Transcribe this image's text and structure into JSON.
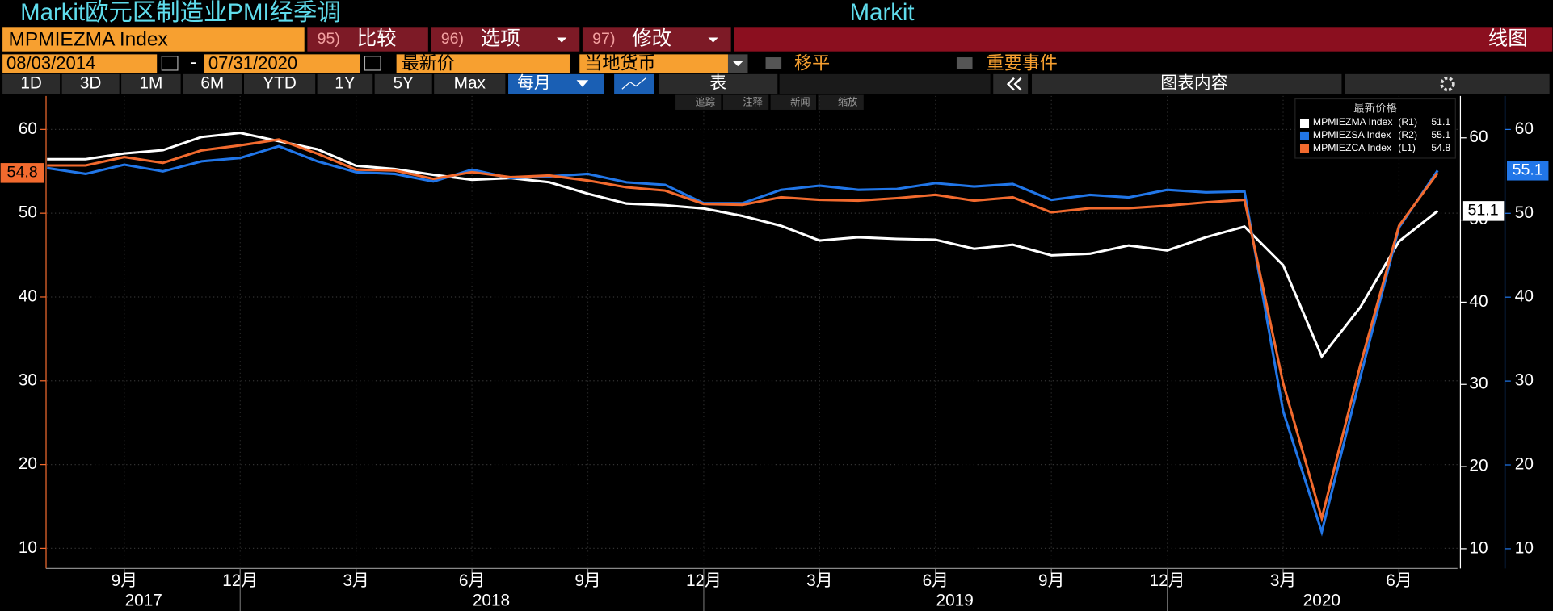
{
  "header": {
    "title": "Markit欧元区制造业PMI经季调",
    "source": "Markit"
  },
  "toolbar": {
    "ticker": "MPMIEZMA Index",
    "buttons": [
      {
        "num": "95)",
        "label": "比较"
      },
      {
        "num": "96)",
        "label": "选项"
      },
      {
        "num": "97)",
        "label": "修改"
      }
    ],
    "view": "线图",
    "start_date": "08/03/2014",
    "date_sep": "-",
    "end_date": "07/31/2020",
    "field": "最新价",
    "currency": "当地货币",
    "option1": "移平",
    "option2": "重要事件",
    "periods": [
      "1D",
      "3D",
      "1M",
      "6M",
      "YTD",
      "1Y",
      "5Y",
      "Max"
    ],
    "frequency": "每月",
    "table": "表",
    "chart_content": "图表内容",
    "tools": [
      "追踪",
      "注释",
      "新闻",
      "缩放"
    ]
  },
  "chart_data": {
    "type": "line",
    "x": [
      "2017-07",
      "2017-08",
      "2017-09",
      "2017-10",
      "2017-11",
      "2017-12",
      "2018-01",
      "2018-02",
      "2018-03",
      "2018-04",
      "2018-05",
      "2018-06",
      "2018-07",
      "2018-08",
      "2018-09",
      "2018-10",
      "2018-11",
      "2018-12",
      "2019-01",
      "2019-02",
      "2019-03",
      "2019-04",
      "2019-05",
      "2019-06",
      "2019-07",
      "2019-08",
      "2019-09",
      "2019-10",
      "2019-11",
      "2019-12",
      "2020-01",
      "2020-02",
      "2020-03",
      "2020-04",
      "2020-05",
      "2020-06",
      "2020-07"
    ],
    "xticks": [
      {
        "value": "2017-09",
        "label": "9月"
      },
      {
        "value": "2017-12",
        "label": "12月"
      },
      {
        "value": "2018-03",
        "label": "3月"
      },
      {
        "value": "2018-06",
        "label": "6月"
      },
      {
        "value": "2018-09",
        "label": "9月"
      },
      {
        "value": "2018-12",
        "label": "12月"
      },
      {
        "value": "2019-03",
        "label": "3月"
      },
      {
        "value": "2019-06",
        "label": "6月"
      },
      {
        "value": "2019-09",
        "label": "9月"
      },
      {
        "value": "2019-12",
        "label": "12月"
      },
      {
        "value": "2020-03",
        "label": "3月"
      },
      {
        "value": "2020-06",
        "label": "6月"
      }
    ],
    "years": [
      "2017",
      "2018",
      "2019",
      "2020"
    ],
    "ylim": [
      7.6,
      64.0
    ],
    "yticks": [
      10,
      20,
      30,
      40,
      50,
      60
    ],
    "y2lim": [
      7.6,
      65.1
    ],
    "y2ticks": [
      10,
      20,
      30,
      40,
      50,
      60
    ],
    "y3lim": [
      7.65,
      64.0
    ],
    "y3ticks": [
      10,
      20,
      30,
      40,
      50,
      60
    ],
    "grid": true,
    "legend_title": "最新价格",
    "legend_position": "top-right",
    "series": [
      {
        "name": "MPMIEZMA Index",
        "axis_label": "(R1)",
        "axis": "y2",
        "color": "#ffffff",
        "values": [
          57.4,
          57.4,
          58.1,
          58.5,
          60.1,
          60.6,
          59.6,
          58.6,
          56.6,
          56.2,
          55.5,
          54.9,
          55.1,
          54.6,
          53.2,
          52.0,
          51.8,
          51.4,
          50.5,
          49.3,
          47.5,
          47.9,
          47.7,
          47.6,
          46.5,
          47.0,
          45.7,
          45.9,
          46.9,
          46.3,
          47.9,
          49.2,
          44.5,
          33.4,
          39.4,
          47.4,
          51.1
        ]
      },
      {
        "name": "MPMIEZSA Index",
        "axis_label": "(R2)",
        "axis": "y3",
        "color": "#2176e8",
        "values": [
          55.4,
          54.7,
          55.8,
          55.0,
          56.2,
          56.6,
          58.0,
          56.2,
          54.9,
          54.7,
          53.8,
          55.2,
          54.2,
          54.4,
          54.7,
          53.7,
          53.4,
          51.2,
          51.2,
          52.8,
          53.3,
          52.8,
          52.9,
          53.6,
          53.2,
          53.5,
          51.6,
          52.2,
          51.9,
          52.8,
          52.5,
          52.6,
          26.4,
          12.0,
          30.5,
          48.3,
          55.1
        ]
      },
      {
        "name": "MPMIEZCA Index",
        "axis_label": "(L1)",
        "axis": "y",
        "color": "#f26a2e",
        "values": [
          55.7,
          55.7,
          56.7,
          56.0,
          57.5,
          58.1,
          58.8,
          57.1,
          55.2,
          55.1,
          54.1,
          54.9,
          54.3,
          54.5,
          53.9,
          53.1,
          52.7,
          51.1,
          51.0,
          51.9,
          51.6,
          51.5,
          51.8,
          52.2,
          51.5,
          51.9,
          50.1,
          50.6,
          50.6,
          50.9,
          51.3,
          51.6,
          29.7,
          13.6,
          31.9,
          48.5,
          54.8
        ]
      }
    ]
  }
}
